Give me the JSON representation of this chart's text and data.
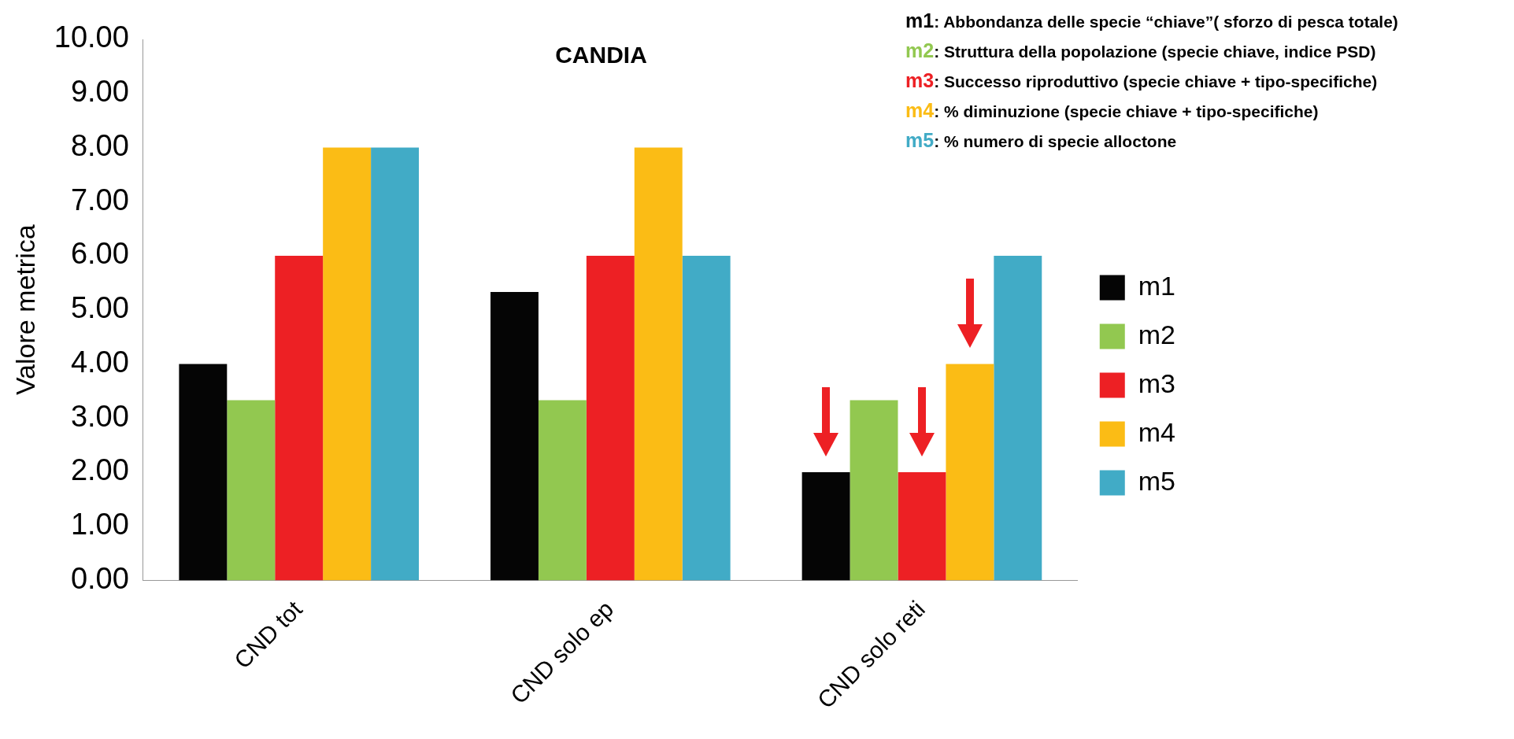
{
  "chart_data": {
    "type": "bar",
    "title": "CANDIA",
    "ylabel": "Valore metrica",
    "categories": [
      "CND tot",
      "CND solo ep",
      "CND solo reti"
    ],
    "series": [
      {
        "name": "m1",
        "color": "#050505",
        "values": [
          4,
          5.33,
          2
        ]
      },
      {
        "name": "m2",
        "color": "#92c850",
        "values": [
          3.33,
          3.33,
          3.33
        ]
      },
      {
        "name": "m3",
        "color": "#ed2024",
        "values": [
          6,
          6,
          2
        ]
      },
      {
        "name": "m4",
        "color": "#fbbc15",
        "values": [
          8,
          8,
          4
        ]
      },
      {
        "name": "m5",
        "color": "#41abc6",
        "values": [
          8,
          6,
          6
        ]
      }
    ],
    "ylim": [
      0,
      10
    ],
    "yticks": [
      {
        "value": 0,
        "label": "0.00"
      },
      {
        "value": 1,
        "label": "1.00"
      },
      {
        "value": 2,
        "label": "2.00"
      },
      {
        "value": 3,
        "label": "3.00"
      },
      {
        "value": 4,
        "label": "4.00"
      },
      {
        "value": 5,
        "label": "5.00"
      },
      {
        "value": 6,
        "label": "6.00"
      },
      {
        "value": 7,
        "label": "7.00"
      },
      {
        "value": 8,
        "label": "8.00"
      },
      {
        "value": 9,
        "label": "9.00"
      },
      {
        "value": 10,
        "label": "10.00"
      }
    ],
    "grid": false,
    "legend": "right",
    "annotations": [
      "m1: Abbondanza delle specie “chiave”( sforzo di pesca totale)",
      "m2: Struttura della popolazione (specie chiave, indice PSD)",
      "m3: Successo riproduttivo (specie chiave + tipo-specifiche)",
      "m4: % diminuzione (specie chiave + tipo-specifiche)",
      "m5: % numero di specie alloctone"
    ]
  }
}
